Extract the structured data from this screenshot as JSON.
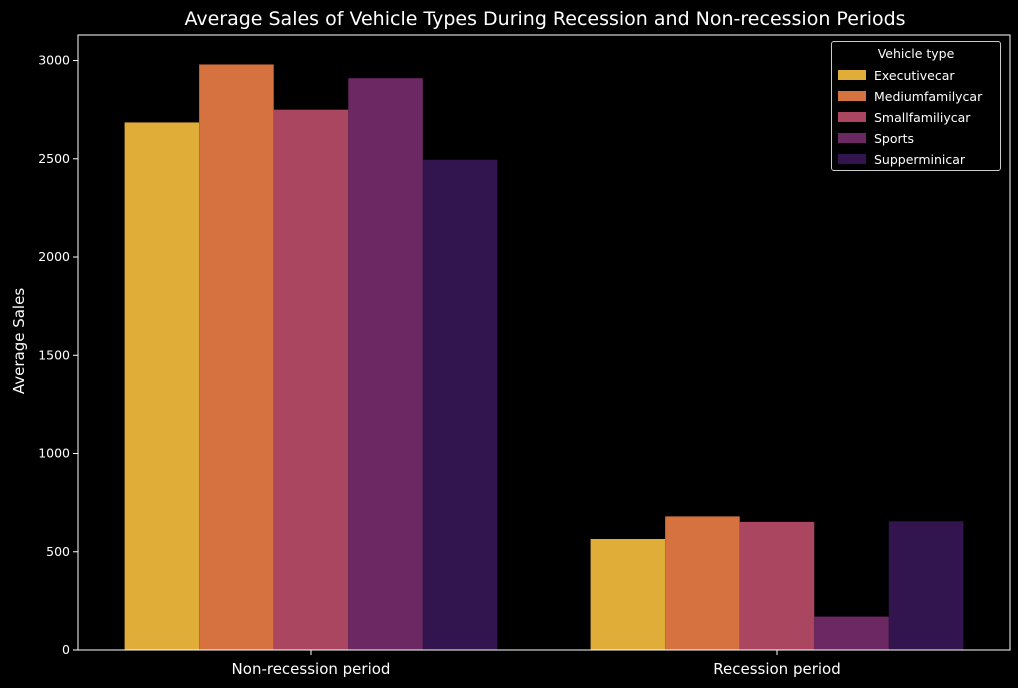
{
  "chart_data": {
    "type": "bar",
    "title": "Average Sales of Vehicle Types During Recession and Non-recession Periods",
    "xlabel": "",
    "ylabel": "Average Sales",
    "categories": [
      "Non-recession period",
      "Recession period"
    ],
    "ylim": [
      0,
      3130
    ],
    "yticks": [
      0,
      500,
      1000,
      1500,
      2000,
      2500,
      3000
    ],
    "grid": false,
    "legend": {
      "title": "Vehicle type",
      "placement": "top-right"
    },
    "series": [
      {
        "name": "Executivecar",
        "color": "#e0ad38",
        "values": [
          2685,
          565
        ]
      },
      {
        "name": "Mediumfamilycar",
        "color": "#d67140",
        "values": [
          2980,
          680
        ]
      },
      {
        "name": "Smallfamiliycar",
        "color": "#ab4660",
        "values": [
          2750,
          652
        ]
      },
      {
        "name": "Sports",
        "color": "#6b2862",
        "values": [
          2910,
          170
        ]
      },
      {
        "name": "Supperminicar",
        "color": "#32144f",
        "values": [
          2495,
          655
        ]
      }
    ]
  }
}
